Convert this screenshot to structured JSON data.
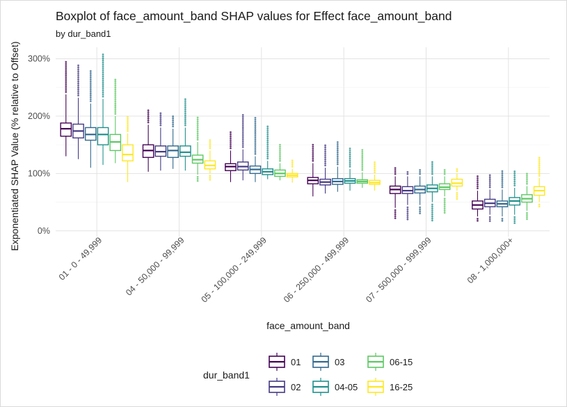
{
  "chart_data": {
    "type": "boxplot",
    "title": "Boxplot of face_amount_band SHAP values for Effect face_amount_band",
    "subtitle": "by dur_band1",
    "xlabel": "face_amount_band",
    "ylabel": "Exponentiated SHAP Value (% relative to Offset)",
    "y_tick_labels": [
      "0%",
      "100%",
      "200%",
      "300%"
    ],
    "y_ticks": [
      0,
      100,
      200,
      300
    ],
    "ylim": [
      -10,
      320
    ],
    "grid": true,
    "categories": [
      "01 - 0 - 49,999",
      "04 - 50,000 - 99,999",
      "05 - 100,000 - 249,999",
      "06 - 250,000 - 499,999",
      "07 - 500,000 - 999,999",
      "08 - 1,000,000+"
    ],
    "legend": {
      "title": "dur_band1",
      "position": "bottom",
      "entries": [
        "01",
        "02",
        "03",
        "04-05",
        "06-15",
        "16-25"
      ]
    },
    "series": [
      {
        "name": "01",
        "color": "#440154",
        "boxes": [
          {
            "whisker_low": 130,
            "q1": 165,
            "median": 178,
            "q3": 188,
            "whisker_high": 238,
            "outlier_high": 295,
            "outlier_low": null
          },
          {
            "whisker_low": 103,
            "q1": 128,
            "median": 140,
            "q3": 150,
            "whisker_high": 185,
            "outlier_high": 210,
            "outlier_low": null
          },
          {
            "whisker_low": 85,
            "q1": 105,
            "median": 112,
            "q3": 117,
            "whisker_high": 140,
            "outlier_high": 172,
            "outlier_low": null
          },
          {
            "whisker_low": 60,
            "q1": 82,
            "median": 88,
            "q3": 93,
            "whisker_high": 118,
            "outlier_high": 152,
            "outlier_low": null
          },
          {
            "whisker_low": 40,
            "q1": 65,
            "median": 72,
            "q3": 78,
            "whisker_high": 95,
            "outlier_high": 110,
            "outlier_low": 22
          },
          {
            "whisker_low": 25,
            "q1": 38,
            "median": 45,
            "q3": 52,
            "whisker_high": 70,
            "outlier_high": 98,
            "outlier_low": 15
          }
        ]
      },
      {
        "name": "02",
        "color": "#443983",
        "boxes": [
          {
            "whisker_low": 125,
            "q1": 162,
            "median": 174,
            "q3": 186,
            "whisker_high": 232,
            "outlier_high": 290,
            "outlier_low": null
          },
          {
            "whisker_low": 105,
            "q1": 130,
            "median": 138,
            "q3": 148,
            "whisker_high": 180,
            "outlier_high": 208,
            "outlier_low": null
          },
          {
            "whisker_low": 88,
            "q1": 106,
            "median": 112,
            "q3": 120,
            "whisker_high": 142,
            "outlier_high": 205,
            "outlier_low": null
          },
          {
            "whisker_low": 65,
            "q1": 80,
            "median": 85,
            "q3": 90,
            "whisker_high": 110,
            "outlier_high": 150,
            "outlier_low": null
          },
          {
            "whisker_low": 45,
            "q1": 65,
            "median": 70,
            "q3": 77,
            "whisker_high": 95,
            "outlier_high": 105,
            "outlier_low": 20
          },
          {
            "whisker_low": 28,
            "q1": 42,
            "median": 48,
            "q3": 55,
            "whisker_high": 72,
            "outlier_high": 100,
            "outlier_low": 15
          }
        ]
      },
      {
        "name": "03",
        "color": "#31688e",
        "boxes": [
          {
            "whisker_low": 110,
            "q1": 158,
            "median": 168,
            "q3": 180,
            "whisker_high": 222,
            "outlier_high": 280,
            "outlier_low": null
          },
          {
            "whisker_low": 108,
            "q1": 128,
            "median": 140,
            "q3": 148,
            "whisker_high": 178,
            "outlier_high": 200,
            "outlier_low": null
          },
          {
            "whisker_low": 85,
            "q1": 100,
            "median": 107,
            "q3": 113,
            "whisker_high": 130,
            "outlier_high": 200,
            "outlier_low": null
          },
          {
            "whisker_low": 68,
            "q1": 81,
            "median": 86,
            "q3": 91,
            "whisker_high": 112,
            "outlier_high": 155,
            "outlier_low": null
          },
          {
            "whisker_low": 45,
            "q1": 66,
            "median": 72,
            "q3": 78,
            "whisker_high": 95,
            "outlier_high": 108,
            "outlier_low": 28
          },
          {
            "whisker_low": 25,
            "q1": 42,
            "median": 47,
            "q3": 52,
            "whisker_high": 72,
            "outlier_high": 105,
            "outlier_low": 15
          }
        ]
      },
      {
        "name": "04-05",
        "color": "#21908d",
        "boxes": [
          {
            "whisker_low": 115,
            "q1": 150,
            "median": 168,
            "q3": 180,
            "whisker_high": 230,
            "outlier_high": 310,
            "outlier_low": null
          },
          {
            "whisker_low": 105,
            "q1": 130,
            "median": 137,
            "q3": 148,
            "whisker_high": 180,
            "outlier_high": 230,
            "outlier_low": null
          },
          {
            "whisker_low": 90,
            "q1": 98,
            "median": 103,
            "q3": 108,
            "whisker_high": 122,
            "outlier_high": 185,
            "outlier_low": null
          },
          {
            "whisker_low": 70,
            "q1": 83,
            "median": 87,
            "q3": 91,
            "whisker_high": 108,
            "outlier_high": 145,
            "outlier_low": null
          },
          {
            "whisker_low": 50,
            "q1": 68,
            "median": 74,
            "q3": 80,
            "whisker_high": 95,
            "outlier_high": 120,
            "outlier_low": 15
          },
          {
            "whisker_low": 28,
            "q1": 45,
            "median": 52,
            "q3": 58,
            "whisker_high": 75,
            "outlier_high": 105,
            "outlier_low": 12
          }
        ]
      },
      {
        "name": "06-15",
        "color": "#5dc863",
        "boxes": [
          {
            "whisker_low": 118,
            "q1": 140,
            "median": 155,
            "q3": 168,
            "whisker_high": 200,
            "outlier_high": 265,
            "outlier_low": null
          },
          {
            "whisker_low": 98,
            "q1": 118,
            "median": 124,
            "q3": 132,
            "whisker_high": 155,
            "outlier_high": 200,
            "outlier_low": 85
          },
          {
            "whisker_low": 88,
            "q1": 95,
            "median": 100,
            "q3": 106,
            "whisker_high": 118,
            "outlier_high": 150,
            "outlier_low": null
          },
          {
            "whisker_low": 75,
            "q1": 83,
            "median": 86,
            "q3": 89,
            "whisker_high": 102,
            "outlier_high": 142,
            "outlier_low": null
          },
          {
            "whisker_low": 60,
            "q1": 72,
            "median": 76,
            "q3": 82,
            "whisker_high": 95,
            "outlier_high": 108,
            "outlier_low": 30
          },
          {
            "whisker_low": 35,
            "q1": 50,
            "median": 56,
            "q3": 63,
            "whisker_high": 78,
            "outlier_high": 100,
            "outlier_low": 18
          }
        ]
      },
      {
        "name": "16-25",
        "color": "#fde725",
        "boxes": [
          {
            "whisker_low": 85,
            "q1": 122,
            "median": 133,
            "q3": 150,
            "whisker_high": 170,
            "outlier_high": 200,
            "outlier_low": null
          },
          {
            "whisker_low": 100,
            "q1": 108,
            "median": 114,
            "q3": 122,
            "whisker_high": 140,
            "outlier_high": 158,
            "outlier_low": 88
          },
          {
            "whisker_low": 84,
            "q1": 94,
            "median": 97,
            "q3": 100,
            "whisker_high": 108,
            "outlier_high": 125,
            "outlier_low": null
          },
          {
            "whisker_low": 70,
            "q1": 81,
            "median": 84,
            "q3": 88,
            "whisker_high": 98,
            "outlier_high": 120,
            "outlier_low": null
          },
          {
            "whisker_low": 70,
            "q1": 78,
            "median": 83,
            "q3": 90,
            "whisker_high": 100,
            "outlier_high": 110,
            "outlier_low": 55
          },
          {
            "whisker_low": 50,
            "q1": 62,
            "median": 70,
            "q3": 77,
            "whisker_high": 92,
            "outlier_high": 130,
            "outlier_low": 40
          }
        ]
      }
    ]
  }
}
